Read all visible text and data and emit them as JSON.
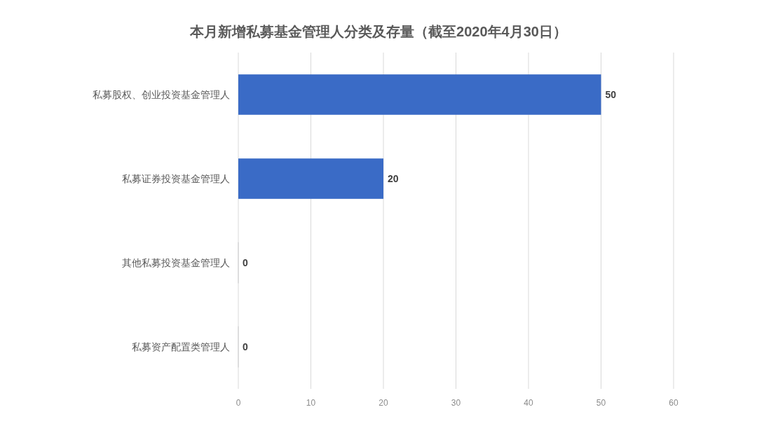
{
  "chart_data": {
    "type": "bar",
    "orientation": "horizontal",
    "title": "本月新增私募基金管理人分类及存量（截至2020年4月30日）",
    "categories": [
      "私募股权、创业投资基金管理人",
      "私募证券投资基金管理人",
      "其他私募投资基金管理人",
      "私募资产配置类管理人"
    ],
    "values": [
      50,
      20,
      0,
      0
    ],
    "color": "#3a6bc6",
    "xlim": [
      0,
      60
    ],
    "xticks": [
      0,
      10,
      20,
      30,
      40,
      50,
      60
    ],
    "grid": "x",
    "data_labels": true
  }
}
